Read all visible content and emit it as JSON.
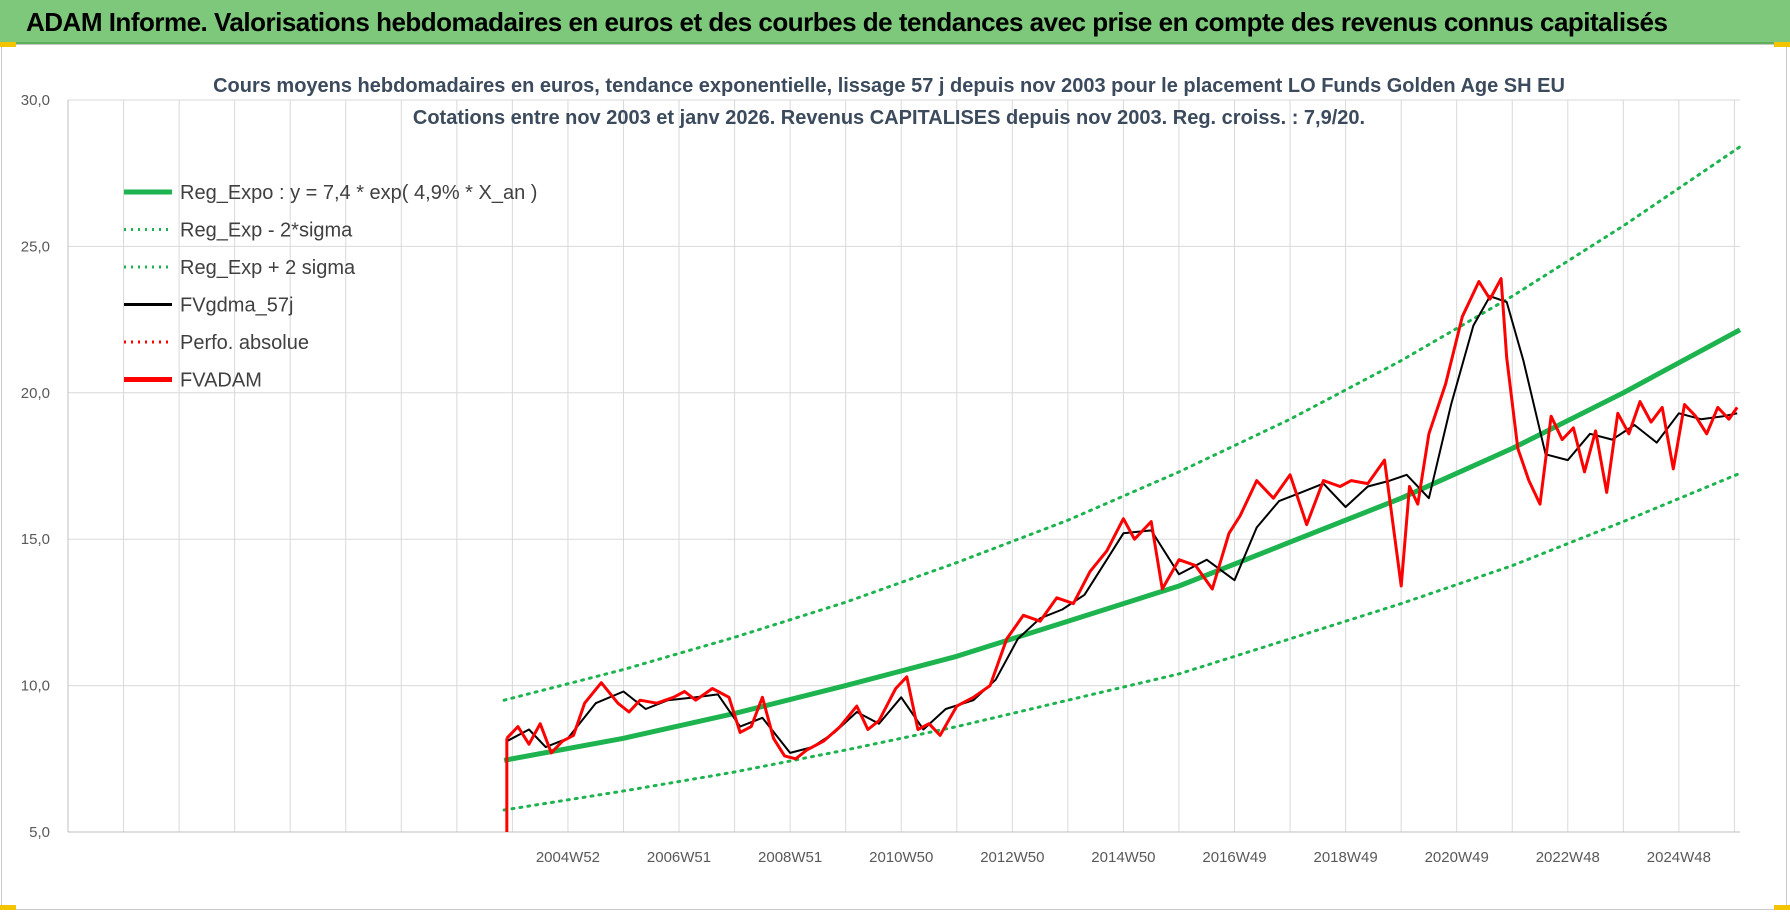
{
  "banner": {
    "title": "ADAM Informe. Valorisations hebdomadaires en euros et des courbes de tendances avec prise en compte des revenus connus capitalisés"
  },
  "chart_data": {
    "type": "line",
    "title": "Cours moyens hebdomadaires en euros, tendance exponentielle, lissage 57 j depuis nov 2003  pour le placement LO Funds Golden Age SH EU",
    "subtitle": "Cotations entre nov 2003 et janv 2026. Revenus CAPITALISES depuis nov 2003. Reg. croiss. : 7,9/20.",
    "ylim": [
      5,
      30
    ],
    "y_ticks": [
      "5,0",
      "10,0",
      "15,0",
      "20,0",
      "25,0",
      "30,0"
    ],
    "x_tick_labels": [
      "2004W52",
      "2006W51",
      "2008W51",
      "2010W50",
      "2012W50",
      "2014W50",
      "2016W49",
      "2018W49",
      "2020W49",
      "2022W48",
      "2024W48"
    ],
    "x_tick_years": [
      2005.0,
      2007.0,
      2009.0,
      2011.0,
      2013.0,
      2015.0,
      2017.0,
      2019.0,
      2021.0,
      2023.0,
      2025.0
    ],
    "x_range": [
      1996.0,
      2026.1
    ],
    "grid": true,
    "legend_position": "top-left",
    "colors": {
      "reg": "#1db34f",
      "smooth": "#000000",
      "fvadam": "#ff0000",
      "perf": "#ff0000",
      "grid": "#d9d9d9",
      "axis_text": "#595959",
      "title_text": "#3b4a5c"
    },
    "legend": [
      {
        "key": "reg",
        "label": "Reg_Expo : y = 7,4 * exp( 4,9% *  X_an )",
        "style": "solid-thick",
        "color": "#1db34f"
      },
      {
        "key": "lower",
        "label": "Reg_Exp - 2*sigma",
        "style": "dotted",
        "color": "#1db34f"
      },
      {
        "key": "upper",
        "label": "Reg_Exp + 2 sigma",
        "style": "dotted",
        "color": "#1db34f"
      },
      {
        "key": "smooth",
        "label": "FVgdma_57j",
        "style": "solid",
        "color": "#000000"
      },
      {
        "key": "perf",
        "label": "Perfo. absolue",
        "style": "dotted",
        "color": "#ff0000"
      },
      {
        "key": "fvadam",
        "label": "FVADAM",
        "style": "solid-thick",
        "color": "#ff0000"
      }
    ],
    "series": [
      {
        "name": "Reg_Expo : y = 7,4 * exp( 4,9% *  X_an )",
        "x": [
          2003.85,
          2006.0,
          2008.0,
          2010.0,
          2012.0,
          2014.0,
          2016.0,
          2018.0,
          2020.0,
          2022.0,
          2024.0,
          2026.1
        ],
        "y": [
          7.45,
          8.2,
          9.05,
          10.0,
          11.0,
          12.2,
          13.4,
          14.9,
          16.4,
          18.1,
          20.0,
          22.15
        ]
      },
      {
        "name": "Reg_Exp - 2*sigma",
        "x": [
          2003.85,
          2006.0,
          2008.0,
          2010.0,
          2012.0,
          2014.0,
          2016.0,
          2018.0,
          2020.0,
          2022.0,
          2024.0,
          2026.1
        ],
        "y": [
          5.75,
          6.4,
          7.05,
          7.8,
          8.6,
          9.5,
          10.4,
          11.6,
          12.8,
          14.1,
          15.6,
          17.25
        ]
      },
      {
        "name": "Reg_Exp + 2 sigma",
        "x": [
          2003.85,
          2006.0,
          2008.0,
          2010.0,
          2012.0,
          2014.0,
          2016.0,
          2018.0,
          2020.0,
          2022.0,
          2024.0,
          2026.1
        ],
        "y": [
          9.5,
          10.55,
          11.65,
          12.85,
          14.2,
          15.65,
          17.3,
          19.1,
          21.1,
          23.3,
          25.7,
          28.4
        ]
      },
      {
        "name": "FVgdma_57j",
        "x": [
          2003.9,
          2004.3,
          2004.6,
          2005.0,
          2005.5,
          2006.0,
          2006.4,
          2006.8,
          2007.3,
          2007.7,
          2008.1,
          2008.5,
          2009.0,
          2009.4,
          2009.8,
          2010.2,
          2010.6,
          2011.0,
          2011.4,
          2011.8,
          2012.3,
          2012.7,
          2013.1,
          2013.5,
          2013.9,
          2014.3,
          2014.7,
          2015.0,
          2015.5,
          2016.0,
          2016.5,
          2017.0,
          2017.4,
          2017.8,
          2018.2,
          2018.6,
          2019.0,
          2019.4,
          2019.8,
          2020.1,
          2020.5,
          2020.9,
          2021.3,
          2021.6,
          2021.9,
          2022.2,
          2022.6,
          2023.0,
          2023.4,
          2023.8,
          2024.2,
          2024.6,
          2025.0,
          2025.4,
          2025.8,
          2026.05
        ],
        "y": [
          8.1,
          8.5,
          7.9,
          8.2,
          9.4,
          9.8,
          9.2,
          9.5,
          9.6,
          9.7,
          8.6,
          8.9,
          7.7,
          7.9,
          8.4,
          9.1,
          8.7,
          9.6,
          8.5,
          9.2,
          9.5,
          10.2,
          11.6,
          12.3,
          12.6,
          13.1,
          14.3,
          15.2,
          15.3,
          13.8,
          14.3,
          13.6,
          15.4,
          16.3,
          16.6,
          16.9,
          16.1,
          16.8,
          17.0,
          17.2,
          16.4,
          19.6,
          22.3,
          23.3,
          23.1,
          21.1,
          17.9,
          17.7,
          18.6,
          18.4,
          18.9,
          18.3,
          19.3,
          19.1,
          19.2,
          19.3
        ]
      },
      {
        "name": "FVADAM",
        "x": [
          2003.9,
          2004.1,
          2004.3,
          2004.5,
          2004.7,
          2004.9,
          2005.1,
          2005.3,
          2005.6,
          2005.9,
          2006.1,
          2006.3,
          2006.6,
          2006.9,
          2007.1,
          2007.3,
          2007.6,
          2007.9,
          2008.1,
          2008.3,
          2008.5,
          2008.7,
          2008.9,
          2009.1,
          2009.3,
          2009.6,
          2009.9,
          2010.2,
          2010.4,
          2010.6,
          2010.9,
          2011.1,
          2011.3,
          2011.5,
          2011.7,
          2012.0,
          2012.3,
          2012.6,
          2012.9,
          2013.2,
          2013.5,
          2013.8,
          2014.1,
          2014.4,
          2014.7,
          2015.0,
          2015.2,
          2015.5,
          2015.7,
          2016.0,
          2016.3,
          2016.6,
          2016.9,
          2017.1,
          2017.4,
          2017.7,
          2018.0,
          2018.3,
          2018.6,
          2018.9,
          2019.1,
          2019.4,
          2019.7,
          2020.0,
          2020.15,
          2020.3,
          2020.5,
          2020.8,
          2021.1,
          2021.4,
          2021.6,
          2021.8,
          2021.9,
          2022.1,
          2022.3,
          2022.5,
          2022.7,
          2022.9,
          2023.1,
          2023.3,
          2023.5,
          2023.7,
          2023.9,
          2024.1,
          2024.3,
          2024.5,
          2024.7,
          2024.9,
          2025.1,
          2025.3,
          2025.5,
          2025.7,
          2025.9,
          2026.05
        ],
        "y": [
          8.2,
          8.6,
          8.0,
          8.7,
          7.7,
          8.1,
          8.3,
          9.4,
          10.1,
          9.4,
          9.1,
          9.5,
          9.4,
          9.6,
          9.8,
          9.5,
          9.9,
          9.6,
          8.4,
          8.6,
          9.6,
          8.2,
          7.6,
          7.5,
          7.8,
          8.1,
          8.6,
          9.3,
          8.5,
          8.8,
          9.9,
          10.3,
          8.5,
          8.7,
          8.3,
          9.3,
          9.6,
          10.0,
          11.6,
          12.4,
          12.2,
          13.0,
          12.8,
          13.9,
          14.6,
          15.7,
          15.0,
          15.6,
          13.3,
          14.3,
          14.1,
          13.3,
          15.2,
          15.8,
          17.0,
          16.4,
          17.2,
          15.5,
          17.0,
          16.8,
          17.0,
          16.9,
          17.7,
          13.4,
          16.8,
          16.2,
          18.6,
          20.3,
          22.6,
          23.8,
          23.2,
          23.9,
          21.2,
          18.1,
          17.0,
          16.2,
          19.2,
          18.4,
          18.8,
          17.3,
          18.7,
          16.6,
          19.3,
          18.6,
          19.7,
          19.0,
          19.5,
          17.4,
          19.6,
          19.2,
          18.6,
          19.5,
          19.1,
          19.5
        ]
      }
    ]
  }
}
